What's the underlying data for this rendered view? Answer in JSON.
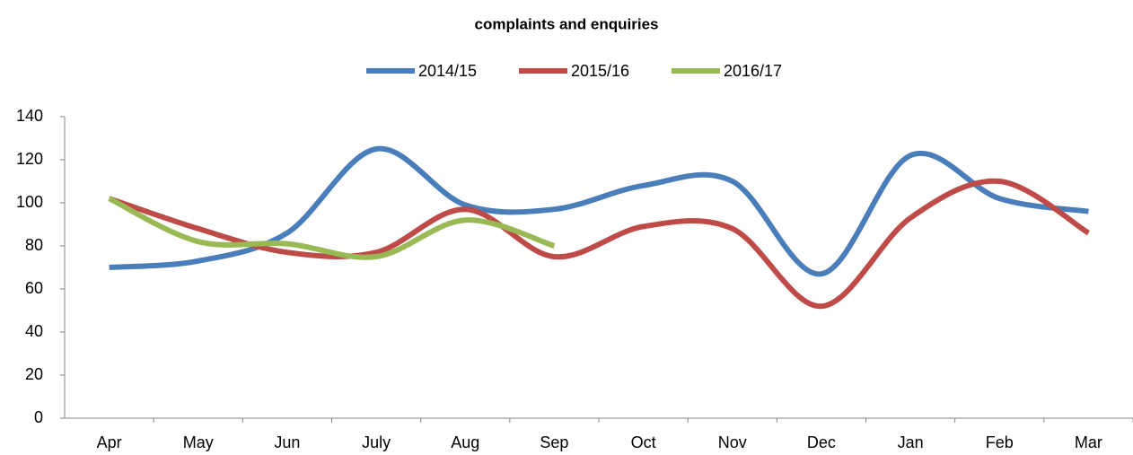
{
  "chart_data": {
    "type": "line",
    "title": "complaints and enquiries",
    "categories": [
      "Apr",
      "May",
      "Jun",
      "July",
      "Aug",
      "Sep",
      "Oct",
      "Nov",
      "Dec",
      "Jan",
      "Feb",
      "Mar"
    ],
    "series": [
      {
        "name": "2014/15",
        "color": "#4a7ebb",
        "values": [
          70,
          73,
          86,
          125,
          99,
          97,
          108,
          110,
          67,
          122,
          102,
          96
        ]
      },
      {
        "name": "2015/16",
        "color": "#be4b48",
        "values": [
          102,
          88,
          77,
          77,
          97,
          75,
          89,
          88,
          52,
          93,
          110,
          86
        ]
      },
      {
        "name": "2016/17",
        "color": "#98b954",
        "values": [
          102,
          82,
          81,
          75,
          92,
          80,
          null,
          null,
          null,
          null,
          null,
          null
        ]
      }
    ],
    "ylim": [
      0,
      140
    ],
    "yticks": [
      0,
      20,
      40,
      60,
      80,
      100,
      120,
      140
    ],
    "smooth": true,
    "legend": "top"
  }
}
